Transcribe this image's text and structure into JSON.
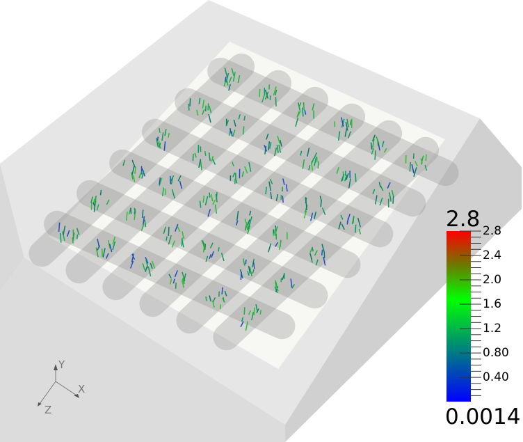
{
  "scene": {
    "background": "#ffffff",
    "box_color": "#e6e6e6",
    "tube_color": "#c8c8c8"
  },
  "color_legend": {
    "max_label": "2.8",
    "min_label": "0.0014",
    "range": [
      0.0014,
      2.8
    ],
    "colormap": [
      "#0000ff",
      "#008080",
      "#00ff00",
      "#6b7a00",
      "#ff0000"
    ],
    "ticks": [
      "2.8",
      "2.4",
      "2.0",
      "1.6",
      "1.2",
      "0.80",
      "0.40"
    ],
    "tick_values": [
      2.8,
      2.4,
      2.0,
      1.6,
      1.2,
      0.8,
      0.4
    ]
  },
  "orientation_axes": {
    "x": "X",
    "y": "Y",
    "z": "Z"
  }
}
